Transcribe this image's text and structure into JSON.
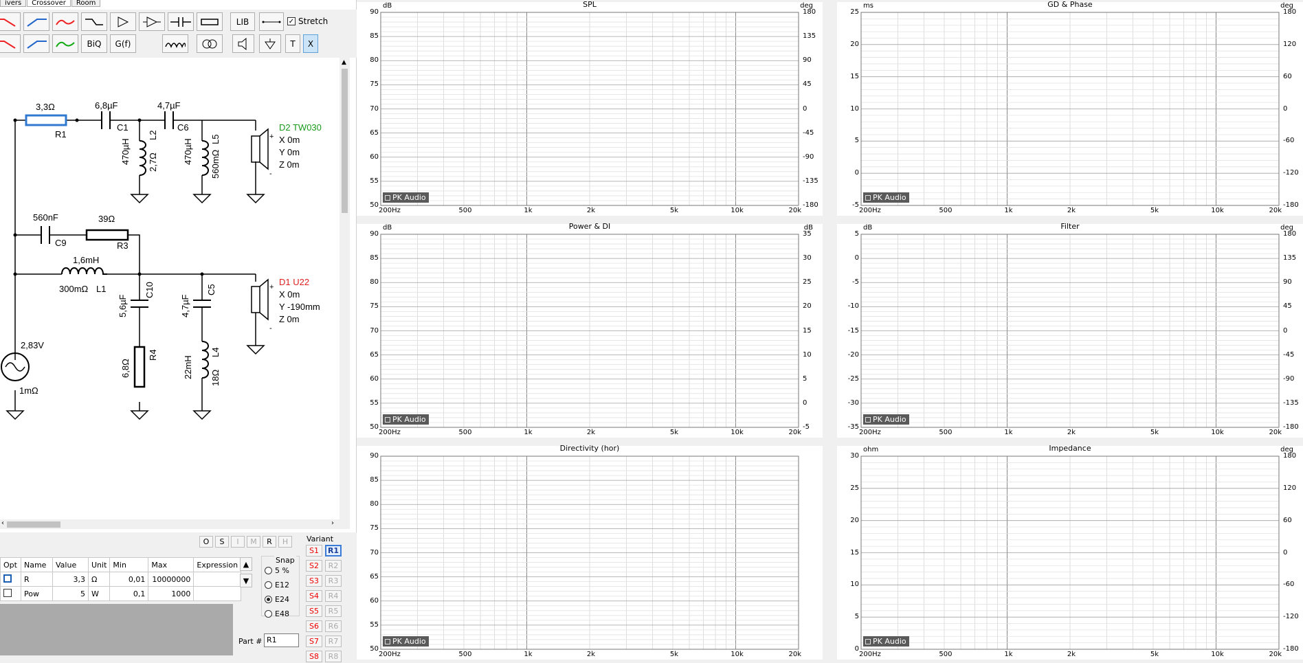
{
  "tabs": [
    "ivers",
    "Crossover",
    "Room"
  ],
  "toolbar": {
    "lib": "LIB",
    "stretch": "Stretch",
    "biq": "BiQ",
    "gf": "G(f)",
    "t": "T",
    "x": "X"
  },
  "schematic": {
    "R1": {
      "value": "3,3Ω",
      "name": "R1"
    },
    "C1": {
      "value": "6,8µF",
      "name": "C1"
    },
    "C6": {
      "value": "4,7µF",
      "name": "C6"
    },
    "L2": {
      "value": "470µH",
      "res": "2,7Ω",
      "name": "L2"
    },
    "L5": {
      "value": "470µH",
      "res": "560mΩ",
      "name": "L5"
    },
    "C9": {
      "value": "560nF",
      "name": "C9"
    },
    "R3": {
      "value": "39Ω",
      "name": "R3"
    },
    "L1": {
      "value": "1,6mH",
      "res": "300mΩ",
      "name": "L1"
    },
    "C10": {
      "value": "5,6µF",
      "name": "C10"
    },
    "C5": {
      "value": "4,7µF",
      "name": "C5"
    },
    "R4": {
      "value": "6,8Ω",
      "name": "R4"
    },
    "L4": {
      "value": "22mH",
      "res": "18Ω",
      "name": "L4"
    },
    "source": {
      "voltage": "2,83V",
      "impedance": "1mΩ"
    },
    "D2": {
      "name": "D2 TW030",
      "x": "X  0m",
      "y": "Y  0m",
      "z": "Z  0m"
    },
    "D1": {
      "name": "D1 U22",
      "x": "X  0m",
      "y": "Y  -190mm",
      "z": "Z  0m"
    }
  },
  "table": {
    "headers": [
      "Opt",
      "Name",
      "Value",
      "Unit",
      "Min",
      "Max",
      "Expression"
    ],
    "rows": [
      [
        "",
        "R",
        "3,3",
        "Ω",
        "0,01",
        "10000000",
        ""
      ],
      [
        "",
        "Pow",
        "5",
        "W",
        "0,1",
        "1000",
        ""
      ]
    ]
  },
  "opt_buttons": [
    "O",
    "S",
    "I",
    "M",
    "R",
    "H"
  ],
  "snap": {
    "label": "Snap",
    "options": [
      "5 %",
      "E12",
      "E24",
      "E48"
    ],
    "selected": "E24"
  },
  "part": {
    "label": "Part #",
    "value": "R1"
  },
  "variant": {
    "label": "Variant",
    "s": [
      "S1",
      "S2",
      "S3",
      "S4",
      "S5",
      "S6",
      "S7",
      "S8"
    ],
    "r": [
      "R1",
      "R2",
      "R3",
      "R4",
      "R5",
      "R6",
      "R7",
      "R8"
    ],
    "active": "R1"
  },
  "panels": [
    {
      "title": "SPL",
      "yl": "dB",
      "yr": "deg",
      "yticks": [
        "90",
        "85",
        "80",
        "75",
        "70",
        "65",
        "60",
        "55",
        "50"
      ],
      "rticks": [
        "180",
        "135",
        "90",
        "45",
        "0",
        "-45",
        "-90",
        "-135",
        "-180"
      ]
    },
    {
      "title": "GD & Phase",
      "yl": "ms",
      "yr": "deg",
      "yticks": [
        "25",
        "20",
        "15",
        "10",
        "5",
        "0",
        "-5"
      ],
      "rticks": [
        "180",
        "120",
        "60",
        "0",
        "-60",
        "-120",
        "-180"
      ]
    },
    {
      "title": "Power & DI",
      "yl": "dB",
      "yr": "dB",
      "yticks": [
        "90",
        "85",
        "80",
        "75",
        "70",
        "65",
        "60",
        "55",
        "50"
      ],
      "rticks": [
        "35",
        "30",
        "25",
        "20",
        "15",
        "10",
        "5",
        "0",
        "-5"
      ]
    },
    {
      "title": "Filter",
      "yl": "dB",
      "yr": "deg",
      "yticks": [
        "5",
        "0",
        "-5",
        "-10",
        "-15",
        "-20",
        "-25",
        "-30",
        "-35"
      ],
      "rticks": [
        "180",
        "135",
        "90",
        "45",
        "0",
        "-45",
        "-90",
        "-135",
        "-180"
      ]
    },
    {
      "title": "Directivity (hor)",
      "yl": "",
      "yr": "",
      "yticks": [
        "90",
        "85",
        "80",
        "75",
        "70",
        "65",
        "60",
        "55",
        "50"
      ],
      "rticks": []
    },
    {
      "title": "Impedance",
      "yl": "ohm",
      "yr": "deg",
      "yticks": [
        "30",
        "25",
        "20",
        "15",
        "10",
        "5",
        "0"
      ],
      "rticks": [
        "180",
        "120",
        "60",
        "0",
        "-60",
        "-120",
        "-180"
      ]
    }
  ],
  "xticks": [
    "200Hz",
    "500",
    "1k",
    "2k",
    "5k",
    "10k",
    "20k"
  ],
  "watermark": "PK Audio",
  "colors": {
    "red": "#ee2222",
    "green": "#22a022",
    "gray": "#555555",
    "blue": "#0000dd",
    "selected": "#3b7bd8"
  }
}
